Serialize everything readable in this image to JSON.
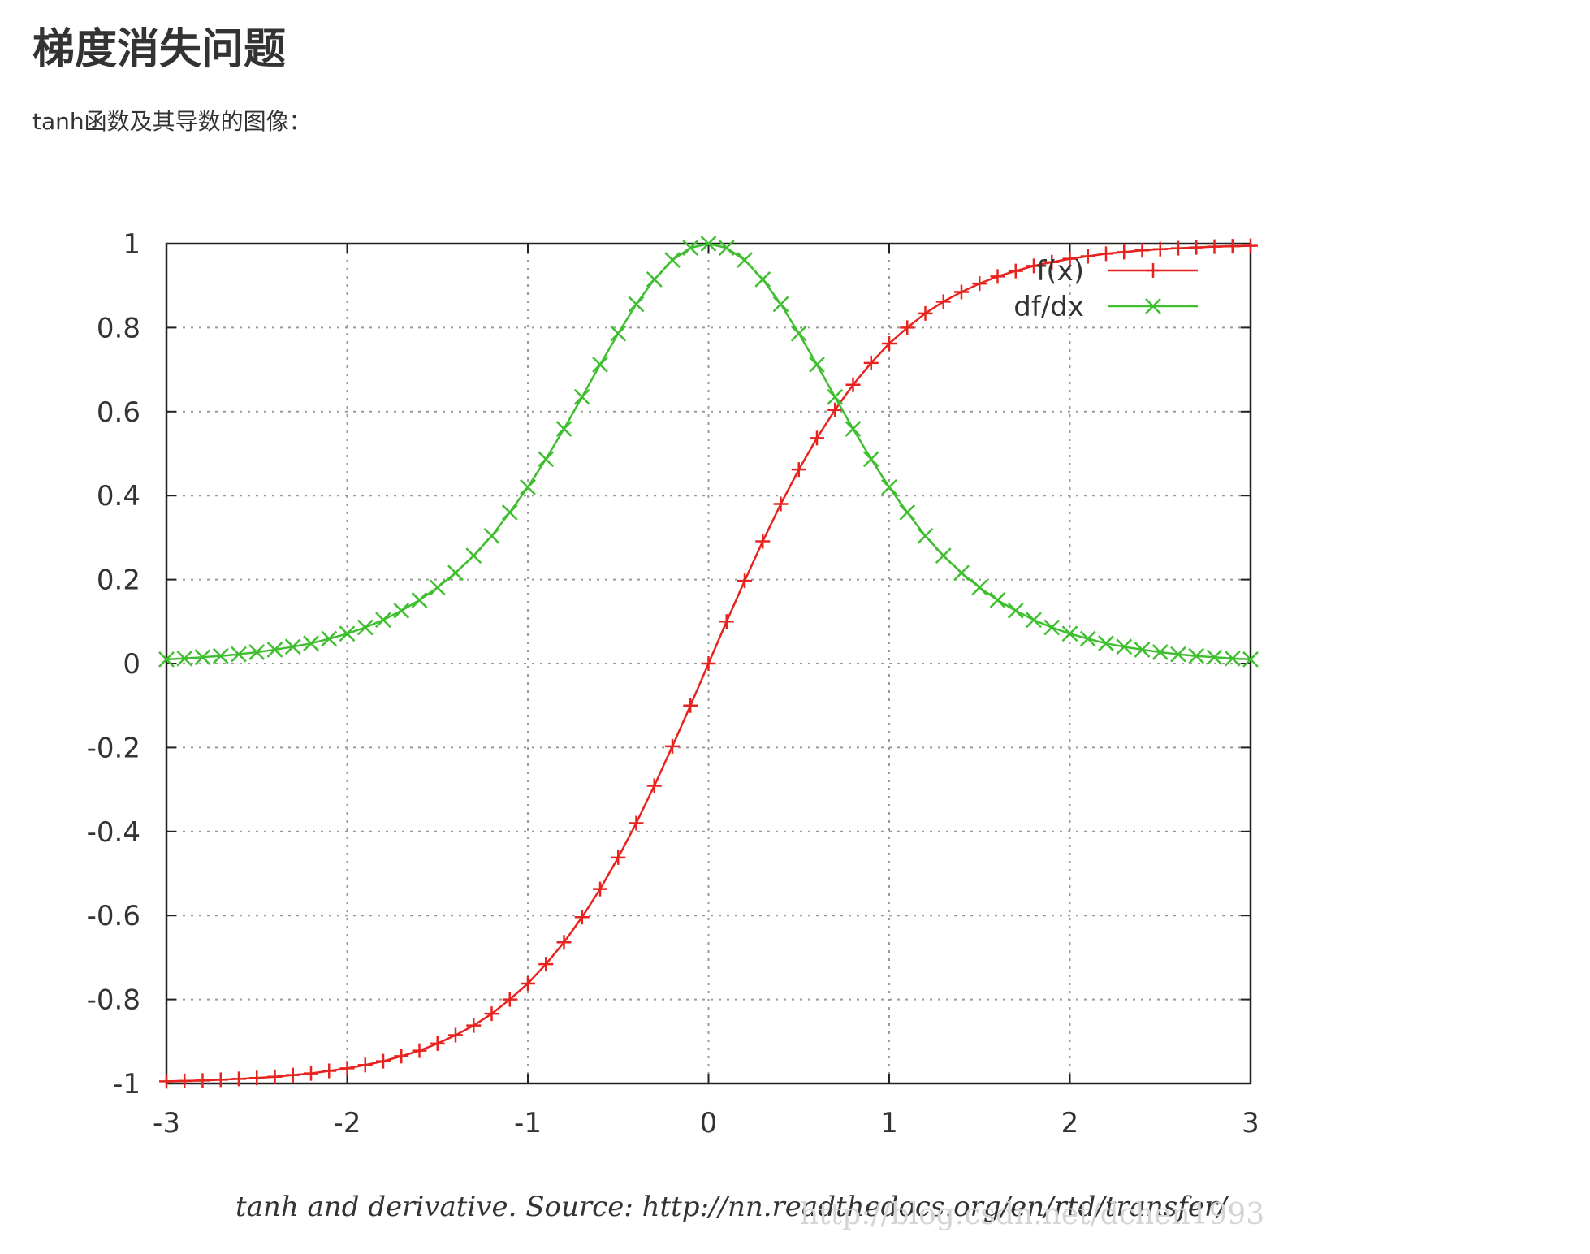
{
  "page": {
    "title": "梯度消失问题",
    "intro": "tanh函数及其导数的图像："
  },
  "caption": "tanh and derivative. Source: http://nn.readthedocs.org/en/rtd/transfer/",
  "watermark": "http://blog.csdn.net/dchen1993",
  "chart_data": {
    "type": "line",
    "title": "",
    "xlabel": "",
    "ylabel": "",
    "xlim": [
      -3,
      3
    ],
    "ylim": [
      -1,
      1
    ],
    "x_ticks": [
      "-3",
      "-2",
      "-1",
      "0",
      "1",
      "2",
      "3"
    ],
    "y_ticks": [
      "-1",
      "-0.8",
      "-0.6",
      "-0.4",
      "-0.2",
      "0",
      "0.2",
      "0.4",
      "0.6",
      "0.8",
      "1"
    ],
    "grid": true,
    "legend_position": "top-right",
    "x": [
      -3.0,
      -2.9,
      -2.8,
      -2.7,
      -2.6,
      -2.5,
      -2.4,
      -2.3,
      -2.2,
      -2.1,
      -2.0,
      -1.9,
      -1.8,
      -1.7,
      -1.6,
      -1.5,
      -1.4,
      -1.3,
      -1.2,
      -1.1,
      -1.0,
      -0.9,
      -0.8,
      -0.7,
      -0.6,
      -0.5,
      -0.4,
      -0.3,
      -0.2,
      -0.1,
      0.0,
      0.1,
      0.2,
      0.3,
      0.4,
      0.5,
      0.6,
      0.7,
      0.8,
      0.9,
      1.0,
      1.1,
      1.2,
      1.3,
      1.4,
      1.5,
      1.6,
      1.7,
      1.8,
      1.9,
      2.0,
      2.1,
      2.2,
      2.3,
      2.4,
      2.5,
      2.6,
      2.7,
      2.8,
      2.9,
      3.0
    ],
    "series": [
      {
        "name": "f(x)",
        "color": "#e8231f",
        "marker": "plus",
        "values": [
          -0.995,
          -0.994,
          -0.993,
          -0.991,
          -0.989,
          -0.987,
          -0.984,
          -0.98,
          -0.976,
          -0.97,
          -0.964,
          -0.956,
          -0.947,
          -0.935,
          -0.922,
          -0.905,
          -0.885,
          -0.862,
          -0.834,
          -0.8,
          -0.762,
          -0.716,
          -0.664,
          -0.604,
          -0.537,
          -0.462,
          -0.38,
          -0.291,
          -0.197,
          -0.1,
          0.0,
          0.1,
          0.197,
          0.291,
          0.38,
          0.462,
          0.537,
          0.604,
          0.664,
          0.716,
          0.762,
          0.8,
          0.834,
          0.862,
          0.885,
          0.905,
          0.922,
          0.935,
          0.947,
          0.956,
          0.964,
          0.97,
          0.976,
          0.98,
          0.984,
          0.987,
          0.989,
          0.991,
          0.993,
          0.994,
          0.995
        ]
      },
      {
        "name": "df/dx",
        "color": "#3fbf2f",
        "marker": "cross",
        "values": [
          0.01,
          0.012,
          0.015,
          0.018,
          0.022,
          0.027,
          0.033,
          0.04,
          0.048,
          0.059,
          0.071,
          0.086,
          0.104,
          0.126,
          0.151,
          0.181,
          0.216,
          0.257,
          0.304,
          0.36,
          0.42,
          0.487,
          0.559,
          0.635,
          0.712,
          0.786,
          0.856,
          0.915,
          0.961,
          0.99,
          1.0,
          0.99,
          0.961,
          0.915,
          0.856,
          0.786,
          0.712,
          0.635,
          0.559,
          0.487,
          0.42,
          0.36,
          0.304,
          0.257,
          0.216,
          0.181,
          0.151,
          0.126,
          0.104,
          0.086,
          0.071,
          0.059,
          0.048,
          0.04,
          0.033,
          0.027,
          0.022,
          0.018,
          0.015,
          0.012,
          0.01
        ]
      }
    ]
  }
}
